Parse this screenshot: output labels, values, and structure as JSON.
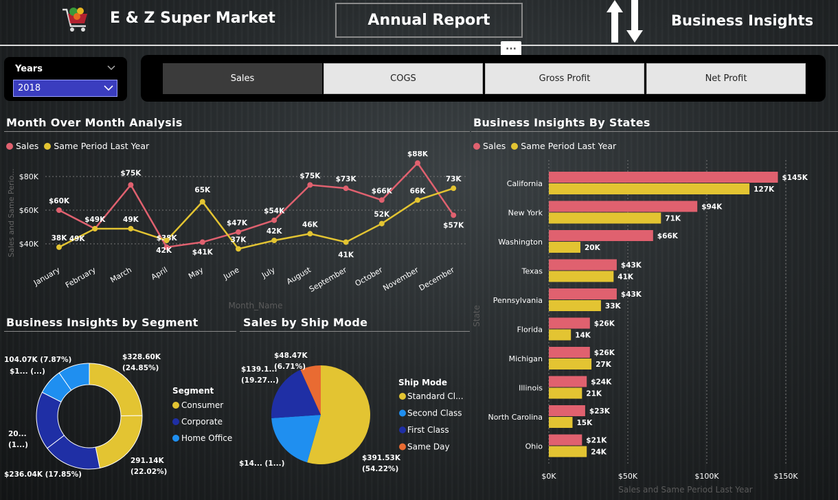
{
  "header": {
    "store_name": "E & Z Super Market",
    "report_label": "Annual Report",
    "insights_label": "Business Insights",
    "more_label": "..."
  },
  "slicer": {
    "label": "Years",
    "value": "2018"
  },
  "tabs": [
    {
      "label": "Sales",
      "active": true
    },
    {
      "label": "COGS",
      "active": false
    },
    {
      "label": "Gross Profit",
      "active": false
    },
    {
      "label": "Net Profit",
      "active": false
    }
  ],
  "colors": {
    "sales": "#e0616f",
    "last_year": "#e3c432",
    "consumer": "#e3c432",
    "corporate": "#1f2fa5",
    "home_office": "#1f8ff0",
    "standard": "#e3c432",
    "second": "#1f8ff0",
    "first": "#1f2fa5",
    "same_day": "#e96b32"
  },
  "chart_data": [
    {
      "id": "mom",
      "type": "line",
      "title": "Month Over Month Analysis",
      "xlabel": "Month_Name",
      "ylabel": "Sales and Same Perio...",
      "categories": [
        "January",
        "February",
        "March",
        "April",
        "May",
        "June",
        "July",
        "August",
        "September",
        "October",
        "November",
        "December"
      ],
      "series": [
        {
          "name": "Sales",
          "values": [
            60,
            49,
            75,
            38,
            41,
            47,
            54,
            75,
            73,
            66,
            88,
            57
          ],
          "labels": [
            "$60K",
            "$49K",
            "$75K",
            "$38K",
            "$41K",
            "$47K",
            "$54K",
            "$75K",
            "$73K",
            "$66K",
            "$88K",
            "$57K"
          ]
        },
        {
          "name": "Same Period Last Year",
          "values": [
            38,
            49,
            49,
            42,
            65,
            37,
            42,
            46,
            41,
            52,
            66,
            73
          ],
          "labels": [
            "38K",
            "49K",
            "49K",
            "42K",
            "65K",
            "37K",
            "42K",
            "46K",
            "41K",
            "52K",
            "66K",
            "73K"
          ]
        }
      ],
      "yticks": [
        40,
        60,
        80
      ],
      "ytick_labels": [
        "$40K",
        "$60K",
        "$80K"
      ],
      "grid": true,
      "legend": "top-left"
    },
    {
      "id": "states",
      "type": "bar",
      "orientation": "horizontal",
      "title": "Business Insights By States",
      "xlabel": "Sales and Same Period Last Year",
      "ylabel": "State",
      "categories": [
        "California",
        "New York",
        "Washington",
        "Texas",
        "Pennsylvania",
        "Florida",
        "Michigan",
        "Illinois",
        "North Carolina",
        "Ohio"
      ],
      "series": [
        {
          "name": "Sales",
          "values": [
            145,
            94,
            66,
            43,
            43,
            26,
            26,
            24,
            23,
            21
          ],
          "labels": [
            "$145K",
            "$94K",
            "$66K",
            "$43K",
            "$43K",
            "$26K",
            "$26K",
            "$24K",
            "$23K",
            "$21K"
          ]
        },
        {
          "name": "Same Period Last Year",
          "values": [
            127,
            71,
            20,
            41,
            33,
            14,
            27,
            21,
            15,
            24
          ],
          "labels": [
            "127K",
            "71K",
            "20K",
            "41K",
            "33K",
            "14K",
            "27K",
            "21K",
            "15K",
            "24K"
          ]
        }
      ],
      "xticks": [
        0,
        50,
        100,
        150
      ],
      "xtick_labels": [
        "$0K",
        "$50K",
        "$100K",
        "$150K"
      ],
      "xlim": [
        0,
        160
      ],
      "grid": true,
      "legend": "top-left"
    },
    {
      "id": "segment",
      "type": "pie",
      "variant": "donut",
      "title": "Business Insights by Segment",
      "legend_title": "Segment",
      "legend_labels": [
        "Consumer",
        "Corporate",
        "Home Office"
      ],
      "slices": [
        {
          "name": "Consumer",
          "value": 328.6,
          "share": 24.85,
          "color_key": "consumer"
        },
        {
          "name": "Consumer",
          "value": 291.14,
          "share": 22.02,
          "color_key": "consumer"
        },
        {
          "name": "Corporate",
          "value": 236.04,
          "share": 17.85,
          "color_key": "corporate"
        },
        {
          "name": "Corporate",
          "value": 236.0,
          "share": 17.85,
          "color_key": "corporate"
        },
        {
          "name": "Home Office",
          "value": 104.07,
          "share": 7.87,
          "color_key": "home_office"
        },
        {
          "name": "Home Office",
          "value": 128.0,
          "share": 9.56,
          "color_key": "home_office"
        }
      ],
      "labels": [
        {
          "line1": "$328.60K",
          "line2": "(24.85%)"
        },
        {
          "line1": "291.14K",
          "line2": "(22.02%)"
        },
        {
          "line1": "$236.04K (17.85%)",
          "line2": ""
        },
        {
          "line1": "20...",
          "line2": "(1...)"
        },
        {
          "line1": "104.07K (7.87%)",
          "line2": ""
        },
        {
          "line1": "$1... (...)",
          "line2": ""
        }
      ]
    },
    {
      "id": "shipmode",
      "type": "pie",
      "title": "Sales by Ship Mode",
      "legend_title": "Ship Mode",
      "legend_labels": [
        "Standard Cl...",
        "Second Class",
        "First Class",
        "Same Day"
      ],
      "slices": [
        {
          "name": "Standard Class",
          "value": 391.53,
          "share": 54.22,
          "color_key": "standard"
        },
        {
          "name": "Second Class",
          "value": 140.0,
          "share": 19.39,
          "color_key": "second"
        },
        {
          "name": "First Class",
          "value": 139.1,
          "share": 19.27,
          "color_key": "first"
        },
        {
          "name": "Same Day",
          "value": 48.47,
          "share": 6.71,
          "color_key": "same_day"
        }
      ],
      "labels": [
        {
          "line1": "$391.53K",
          "line2": "(54.22%)"
        },
        {
          "line1": "$14... (1...)",
          "line2": ""
        },
        {
          "line1": "$139.1...",
          "line2": "(19.27...)"
        },
        {
          "line1": "$48.47K",
          "line2": "(6.71%)"
        }
      ]
    }
  ]
}
